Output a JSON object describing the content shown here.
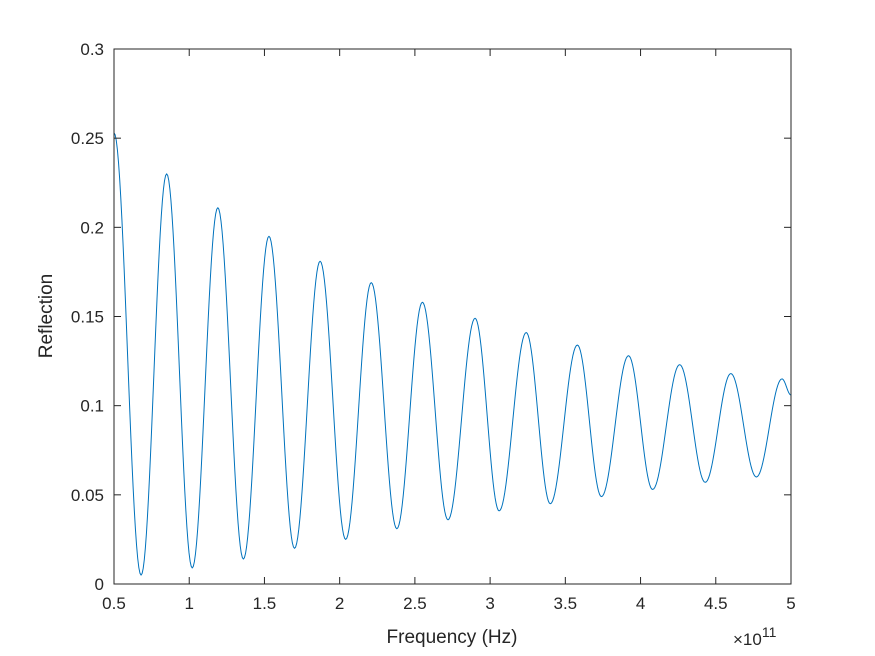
{
  "chart_data": {
    "type": "line",
    "title": "",
    "xlabel": "Frequency (Hz)",
    "ylabel": "Reflection",
    "x_exponent_label": "×10",
    "x_exponent": "11",
    "xlim": [
      50000000000.0,
      500000000000.0
    ],
    "ylim": [
      0,
      0.3
    ],
    "x_ticks": [
      0.5,
      1,
      1.5,
      2,
      2.5,
      3,
      3.5,
      4,
      4.5,
      5
    ],
    "x_tick_labels": [
      "0.5",
      "1",
      "1.5",
      "2",
      "2.5",
      "3",
      "3.5",
      "4",
      "4.5",
      "5"
    ],
    "y_ticks": [
      0,
      0.05,
      0.1,
      0.15,
      0.2,
      0.25,
      0.3
    ],
    "y_tick_labels": [
      "0",
      "0.05",
      "0.1",
      "0.15",
      "0.2",
      "0.25",
      "0.3"
    ],
    "grid": false,
    "line_color": "#0072BD",
    "series": [
      {
        "peaks": [
          [
            50000000000.0,
            0.253
          ],
          [
            85000000000.0,
            0.23
          ],
          [
            119000000000.0,
            0.211
          ],
          [
            153000000000.0,
            0.195
          ],
          [
            187000000000.0,
            0.181
          ],
          [
            221000000000.0,
            0.169
          ],
          [
            255000000000.0,
            0.158
          ],
          [
            290000000000.0,
            0.149
          ],
          [
            324000000000.0,
            0.141
          ],
          [
            358000000000.0,
            0.134
          ],
          [
            392000000000.0,
            0.128
          ],
          [
            426000000000.0,
            0.123
          ],
          [
            460000000000.0,
            0.118
          ],
          [
            494000000000.0,
            0.115
          ],
          [
            500000000000.0,
            0.106
          ]
        ],
        "troughs": [
          [
            68000000000.0,
            0.005
          ],
          [
            102000000000.0,
            0.009
          ],
          [
            136000000000.0,
            0.014
          ],
          [
            170000000000.0,
            0.02
          ],
          [
            204000000000.0,
            0.025
          ],
          [
            238000000000.0,
            0.031
          ],
          [
            272000000000.0,
            0.036
          ],
          [
            306000000000.0,
            0.041
          ],
          [
            340000000000.0,
            0.045
          ],
          [
            374000000000.0,
            0.049
          ],
          [
            408000000000.0,
            0.053
          ],
          [
            443000000000.0,
            0.057
          ],
          [
            477000000000.0,
            0.06
          ]
        ]
      }
    ]
  }
}
